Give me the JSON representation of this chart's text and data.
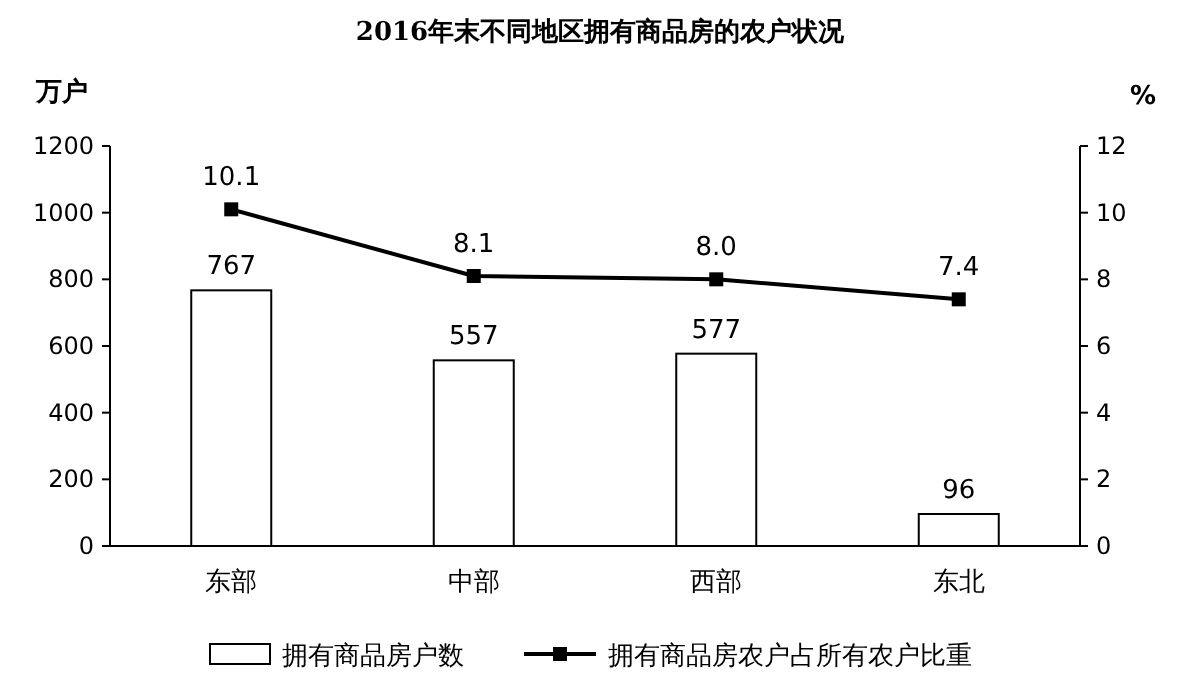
{
  "chart_data": {
    "type": "bar",
    "title": "2016年末不同地区拥有商品房的农户状况",
    "ylabel": "万户",
    "y2label": "%",
    "categories": [
      "东部",
      "中部",
      "西部",
      "东北"
    ],
    "series": [
      {
        "name": "拥有商品房户数",
        "color": "#ffffff",
        "values": [
          767,
          557,
          577,
          96
        ],
        "value_labels": [
          "767",
          "557",
          "577",
          "96"
        ]
      },
      {
        "name": "拥有商品房农户占所有农户比重",
        "type": "line",
        "axis": "y2",
        "color": "#000000",
        "values": [
          10.1,
          8.1,
          8.0,
          7.4
        ],
        "value_labels": [
          "10.1",
          "8.1",
          "8.0",
          "7.4"
        ],
        "marker": "square",
        "line_style": "solid"
      }
    ],
    "ylim": [
      0,
      1200
    ],
    "yticks": [
      0,
      200,
      400,
      600,
      800,
      1000,
      1200
    ],
    "y2lim": [
      0,
      12
    ],
    "y2ticks": [
      0,
      2,
      4,
      6,
      8,
      10,
      12
    ],
    "grid": false,
    "legend": "bottom"
  }
}
